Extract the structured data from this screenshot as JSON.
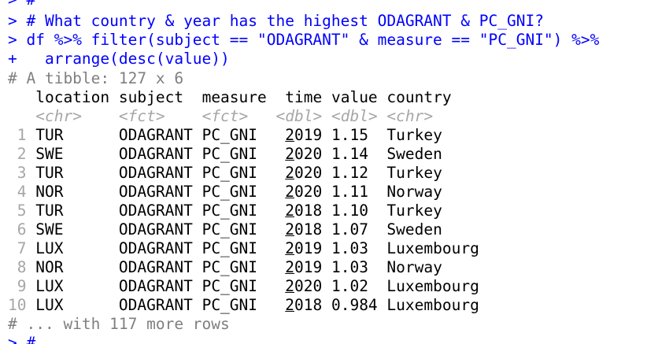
{
  "console": {
    "prompt": ">",
    "continuation": "+",
    "lines": [
      {
        "type": "input",
        "prefix": ">",
        "text": " #"
      },
      {
        "type": "input",
        "prefix": ">",
        "text": " # What country & year has the highest ODAGRANT & PC_GNI?"
      },
      {
        "type": "input",
        "prefix": ">",
        "text": " df %>% filter(subject == \"ODAGRANT\" & measure == \"PC_GNI\") %>%"
      },
      {
        "type": "continuation",
        "prefix": "+",
        "text": "   arrange(desc(value))"
      }
    ],
    "footer_prompt": "> #"
  },
  "tibble": {
    "header": "# A tibble: 127 x 6",
    "columns": [
      {
        "name": "location",
        "type": "<chr>"
      },
      {
        "name": "subject",
        "type": "<fct>"
      },
      {
        "name": "measure",
        "type": "<fct>"
      },
      {
        "name": "time",
        "type": "<dbl>"
      },
      {
        "name": "value",
        "type": "<dbl>"
      },
      {
        "name": "country",
        "type": "<chr>"
      }
    ],
    "rows": [
      {
        "n": "1",
        "location": "TUR",
        "subject": "ODAGRANT",
        "measure": "PC_GNI",
        "time_lead": "2",
        "time_rest": "019",
        "value": "1.15",
        "country": "Turkey"
      },
      {
        "n": "2",
        "location": "SWE",
        "subject": "ODAGRANT",
        "measure": "PC_GNI",
        "time_lead": "2",
        "time_rest": "020",
        "value": "1.14",
        "country": "Sweden"
      },
      {
        "n": "3",
        "location": "TUR",
        "subject": "ODAGRANT",
        "measure": "PC_GNI",
        "time_lead": "2",
        "time_rest": "020",
        "value": "1.12",
        "country": "Turkey"
      },
      {
        "n": "4",
        "location": "NOR",
        "subject": "ODAGRANT",
        "measure": "PC_GNI",
        "time_lead": "2",
        "time_rest": "020",
        "value": "1.11",
        "country": "Norway"
      },
      {
        "n": "5",
        "location": "TUR",
        "subject": "ODAGRANT",
        "measure": "PC_GNI",
        "time_lead": "2",
        "time_rest": "018",
        "value": "1.10",
        "country": "Turkey"
      },
      {
        "n": "6",
        "location": "SWE",
        "subject": "ODAGRANT",
        "measure": "PC_GNI",
        "time_lead": "2",
        "time_rest": "018",
        "value": "1.07",
        "country": "Sweden"
      },
      {
        "n": "7",
        "location": "LUX",
        "subject": "ODAGRANT",
        "measure": "PC_GNI",
        "time_lead": "2",
        "time_rest": "019",
        "value": "1.03",
        "country": "Luxembourg"
      },
      {
        "n": "8",
        "location": "NOR",
        "subject": "ODAGRANT",
        "measure": "PC_GNI",
        "time_lead": "2",
        "time_rest": "019",
        "value": "1.03",
        "country": "Norway"
      },
      {
        "n": "9",
        "location": "LUX",
        "subject": "ODAGRANT",
        "measure": "PC_GNI",
        "time_lead": "2",
        "time_rest": "020",
        "value": "1.02",
        "country": "Luxembourg"
      },
      {
        "n": "10",
        "location": "LUX",
        "subject": "ODAGRANT",
        "measure": "PC_GNI",
        "time_lead": "2",
        "time_rest": "018",
        "value": "0.984",
        "country": "Luxembourg"
      }
    ],
    "more_rows": "# ... with 117 more rows"
  }
}
